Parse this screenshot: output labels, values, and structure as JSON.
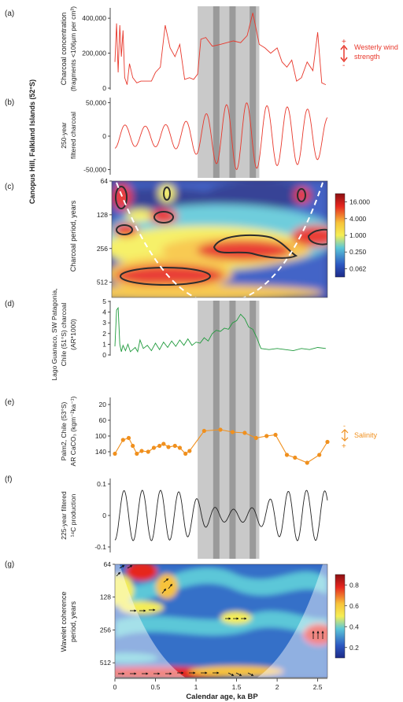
{
  "figure": {
    "side_label": "Canopus Hill, Falkland Islands (52°S)",
    "bands_center": [
      1.25,
      1.45,
      1.7
    ],
    "bands_outer": [
      1.02,
      1.78
    ],
    "xlabel": "Calendar age, ka BP",
    "x_ticks": [
      0,
      0.5,
      1,
      1.5,
      2,
      2.5
    ],
    "xlim": [
      0,
      2.62
    ],
    "colors": {
      "red": "#e8382c",
      "green": "#1f9a3c",
      "orange": "#f0901e",
      "black": "#222222",
      "band_light": "#c9c9c9",
      "band_dark": "#9a9a9a"
    }
  },
  "chart_data": [
    {
      "panel": "(a)",
      "type": "line",
      "ylabel": [
        "Charcoal concentration",
        "(fragments <106µm per cm³)"
      ],
      "ylim": [
        0,
        450000
      ],
      "y_ticks": [
        0,
        200000,
        400000
      ],
      "y_tick_labels": [
        "0",
        "200,000",
        "400,000"
      ],
      "annotation": {
        "label": "Westerly wind strength",
        "plus": "+",
        "minus": "-"
      },
      "x": [
        0.0,
        0.02,
        0.04,
        0.06,
        0.08,
        0.1,
        0.12,
        0.15,
        0.18,
        0.22,
        0.27,
        0.32,
        0.38,
        0.45,
        0.5,
        0.56,
        0.62,
        0.68,
        0.74,
        0.8,
        0.86,
        0.92,
        0.97,
        1.02,
        1.06,
        1.12,
        1.2,
        1.3,
        1.38,
        1.46,
        1.55,
        1.63,
        1.7,
        1.78,
        1.85,
        1.92,
        2.0,
        2.06,
        2.12,
        2.18,
        2.24,
        2.3,
        2.37,
        2.44,
        2.5,
        2.55,
        2.6
      ],
      "y": [
        150000,
        370000,
        90000,
        360000,
        180000,
        330000,
        60000,
        20000,
        140000,
        60000,
        30000,
        40000,
        40000,
        40000,
        90000,
        120000,
        360000,
        230000,
        180000,
        250000,
        50000,
        60000,
        50000,
        80000,
        280000,
        290000,
        240000,
        250000,
        260000,
        270000,
        260000,
        300000,
        430000,
        250000,
        230000,
        200000,
        230000,
        150000,
        120000,
        160000,
        40000,
        60000,
        150000,
        100000,
        320000,
        30000,
        20000
      ]
    },
    {
      "panel": "(b)",
      "type": "line",
      "ylabel": [
        "250-year",
        "filtered charcoal"
      ],
      "ylim": [
        -60000,
        60000
      ],
      "y_ticks": [
        50000,
        0,
        -50000
      ],
      "y_tick_labels": [
        "50,000",
        "0",
        "-50,000"
      ],
      "filter_period": 0.25,
      "x": [
        0.0,
        0.1,
        0.2,
        0.3,
        0.4,
        0.5,
        0.6,
        0.7,
        0.8,
        0.9,
        1.0,
        1.1,
        1.2,
        1.3,
        1.4,
        1.5,
        1.6,
        1.7,
        1.8,
        1.9,
        2.0,
        2.1,
        2.2,
        2.3,
        2.4,
        2.5,
        2.6
      ],
      "amplitude": [
        18000,
        17000,
        16000,
        15000,
        15000,
        16000,
        17000,
        18000,
        20000,
        23000,
        27000,
        32000,
        38000,
        44000,
        48000,
        50000,
        50000,
        49000,
        47000,
        45000,
        44000,
        44000,
        43000,
        42000,
        40000,
        35000,
        28000
      ]
    },
    {
      "panel": "(c)",
      "type": "heatmap",
      "ylabel": [
        "Charcoal period, years"
      ],
      "y_ticks": [
        64,
        128,
        256,
        512
      ],
      "y_tick_labels": [
        "64",
        "128",
        "256",
        "512"
      ],
      "colorbar": {
        "ticks": [
          "16.000",
          "4.000",
          "1.000",
          "0.250",
          "0.062"
        ]
      }
    },
    {
      "panel": "(d)",
      "type": "line",
      "ylabel": [
        "Lago Guanaco, SW Patagonia,",
        "Chile (51°S) charcoal",
        "(AR*1000)"
      ],
      "ylim": [
        0,
        5
      ],
      "y_ticks": [
        0,
        1,
        2,
        3,
        4,
        5
      ],
      "y_tick_labels": [
        "0",
        "1",
        "2",
        "3",
        "4",
        "5"
      ],
      "x": [
        0.0,
        0.02,
        0.04,
        0.06,
        0.08,
        0.1,
        0.13,
        0.16,
        0.19,
        0.22,
        0.25,
        0.28,
        0.31,
        0.35,
        0.4,
        0.45,
        0.5,
        0.55,
        0.6,
        0.65,
        0.7,
        0.75,
        0.8,
        0.85,
        0.9,
        0.95,
        1.0,
        1.05,
        1.1,
        1.15,
        1.2,
        1.25,
        1.3,
        1.35,
        1.4,
        1.45,
        1.5,
        1.55,
        1.6,
        1.65,
        1.7,
        1.75,
        1.8,
        1.9,
        2.0,
        2.1,
        2.2,
        2.3,
        2.4,
        2.5,
        2.6
      ],
      "y": [
        0.8,
        4.2,
        4.4,
        1.0,
        0.3,
        0.9,
        0.4,
        1.0,
        0.3,
        0.5,
        0.7,
        0.3,
        1.4,
        0.6,
        0.9,
        0.4,
        1.1,
        0.5,
        1.2,
        0.7,
        1.3,
        0.8,
        1.4,
        0.9,
        1.5,
        0.9,
        1.2,
        1.1,
        1.6,
        1.3,
        2.0,
        2.3,
        2.2,
        2.5,
        2.4,
        3.0,
        3.2,
        3.8,
        3.4,
        2.6,
        2.4,
        1.6,
        0.6,
        0.5,
        0.6,
        0.5,
        0.4,
        0.6,
        0.5,
        0.7,
        0.6
      ]
    },
    {
      "panel": "(e)",
      "type": "line",
      "ylabel": [
        "Palm2, Chile (53°S)",
        "AR CaCO₃ (kgm⁻²ka⁻¹)"
      ],
      "ylim": [
        160,
        0
      ],
      "y_ticks": [
        20,
        60,
        100,
        140
      ],
      "y_tick_labels": [
        "20",
        "60",
        "100",
        "140"
      ],
      "annotation": {
        "label": "Salinity",
        "plus": "+",
        "minus": "-"
      },
      "x": [
        0.0,
        0.1,
        0.17,
        0.22,
        0.27,
        0.33,
        0.41,
        0.48,
        0.55,
        0.6,
        0.66,
        0.74,
        0.8,
        0.87,
        0.92,
        1.1,
        1.3,
        1.45,
        1.6,
        1.74,
        1.87,
        1.98,
        2.12,
        2.22,
        2.37,
        2.52,
        2.62
      ],
      "y": [
        145,
        110,
        105,
        125,
        145,
        138,
        140,
        130,
        125,
        120,
        128,
        125,
        130,
        145,
        138,
        87,
        84,
        90,
        92,
        105,
        100,
        97,
        148,
        155,
        168,
        148,
        115
      ]
    },
    {
      "panel": "(f)",
      "type": "line",
      "ylabel": [
        "225-year filtered",
        "¹⁴C production"
      ],
      "ylim": [
        -0.12,
        0.12
      ],
      "y_ticks": [
        0.1,
        0,
        -0.1
      ],
      "y_tick_labels": [
        "0.1",
        "0",
        "-0.1"
      ],
      "filter_period": 0.225,
      "x": [
        0.0,
        0.2,
        0.4,
        0.6,
        0.8,
        0.9,
        1.0,
        1.1,
        1.2,
        1.3,
        1.4,
        1.5,
        1.6,
        1.7,
        1.8,
        1.9,
        2.0,
        2.1,
        2.2,
        2.4,
        2.6
      ],
      "amplitude": [
        0.078,
        0.08,
        0.08,
        0.08,
        0.075,
        0.068,
        0.055,
        0.04,
        0.028,
        0.022,
        0.02,
        0.02,
        0.022,
        0.025,
        0.035,
        0.05,
        0.065,
        0.075,
        0.08,
        0.08,
        0.078
      ]
    },
    {
      "panel": "(g)",
      "type": "heatmap",
      "ylabel": [
        "Wavelet coherence",
        "period, years"
      ],
      "y_ticks": [
        64,
        128,
        256,
        512
      ],
      "y_tick_labels": [
        "64",
        "128",
        "256",
        "512"
      ],
      "colorbar": {
        "ticks": [
          "0.8",
          "0.6",
          "0.4",
          "0.2"
        ]
      }
    }
  ]
}
